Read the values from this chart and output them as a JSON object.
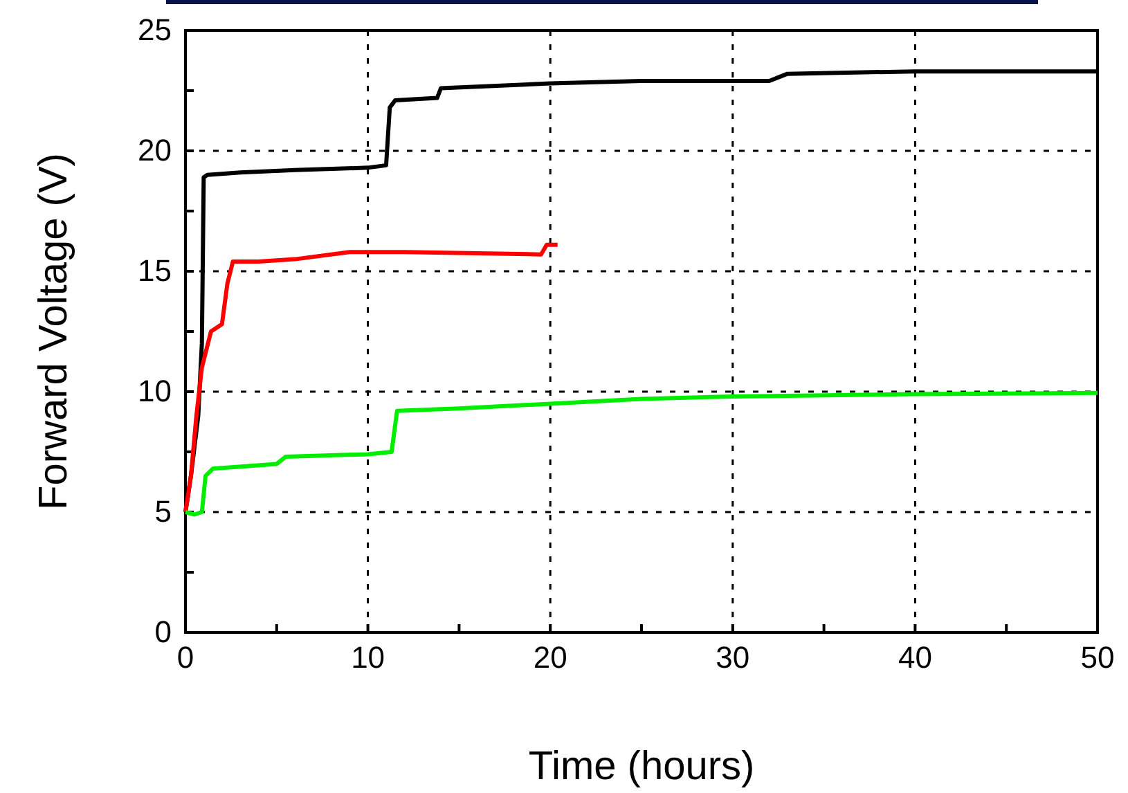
{
  "chart_data": {
    "type": "line",
    "xlabel": "Time (hours)",
    "ylabel": "Forward Voltage (V)",
    "xlim": [
      0,
      50
    ],
    "ylim": [
      0,
      25
    ],
    "xticks": [
      0,
      {
        "value": 5,
        "label": null
      },
      10,
      {
        "value": 15,
        "label": null
      },
      20,
      {
        "value": 25,
        "label": null
      },
      30,
      {
        "value": 35,
        "label": null
      },
      40,
      {
        "value": 45,
        "label": null
      },
      50
    ],
    "yticks": [
      0,
      {
        "value": 2.5,
        "label": null
      },
      5,
      {
        "value": 7.5,
        "label": null
      },
      10,
      {
        "value": 12.5,
        "label": null
      },
      15,
      {
        "value": 17.5,
        "label": null
      },
      20,
      {
        "value": 22.5,
        "label": null
      },
      25
    ],
    "grid": true,
    "line_style": "solid",
    "marker": "none",
    "series": [
      {
        "color": "#000000",
        "x": [
          0,
          0.3,
          0.7,
          0.9,
          1,
          1.2,
          3,
          6,
          10,
          11,
          11.2,
          11.5,
          13.8,
          14,
          20,
          25,
          32,
          33,
          40,
          50
        ],
        "values": [
          5,
          6.5,
          9,
          12,
          18.9,
          19,
          19.1,
          19.2,
          19.3,
          19.4,
          21.8,
          22.1,
          22.2,
          22.6,
          22.8,
          22.9,
          22.9,
          23.2,
          23.3,
          23.3
        ]
      },
      {
        "color": "#ff0000",
        "x": [
          0,
          0.3,
          0.6,
          0.9,
          1.4,
          2,
          2.3,
          2.6,
          4,
          6,
          9,
          12,
          19.5,
          19.8,
          20.4
        ],
        "values": [
          5,
          6.5,
          9,
          11,
          12.5,
          12.8,
          14.5,
          15.4,
          15.4,
          15.5,
          15.8,
          15.8,
          15.7,
          16.1,
          16.1
        ]
      },
      {
        "color": "#00ee00",
        "x": [
          0,
          0.5,
          0.9,
          1.1,
          1.5,
          5,
          5.5,
          10,
          11.3,
          11.6,
          15,
          20,
          25,
          30,
          40,
          50
        ],
        "values": [
          5,
          4.9,
          5,
          6.5,
          6.8,
          7,
          7.3,
          7.4,
          7.5,
          9.2,
          9.3,
          9.5,
          9.7,
          9.8,
          9.9,
          9.95
        ]
      }
    ]
  }
}
